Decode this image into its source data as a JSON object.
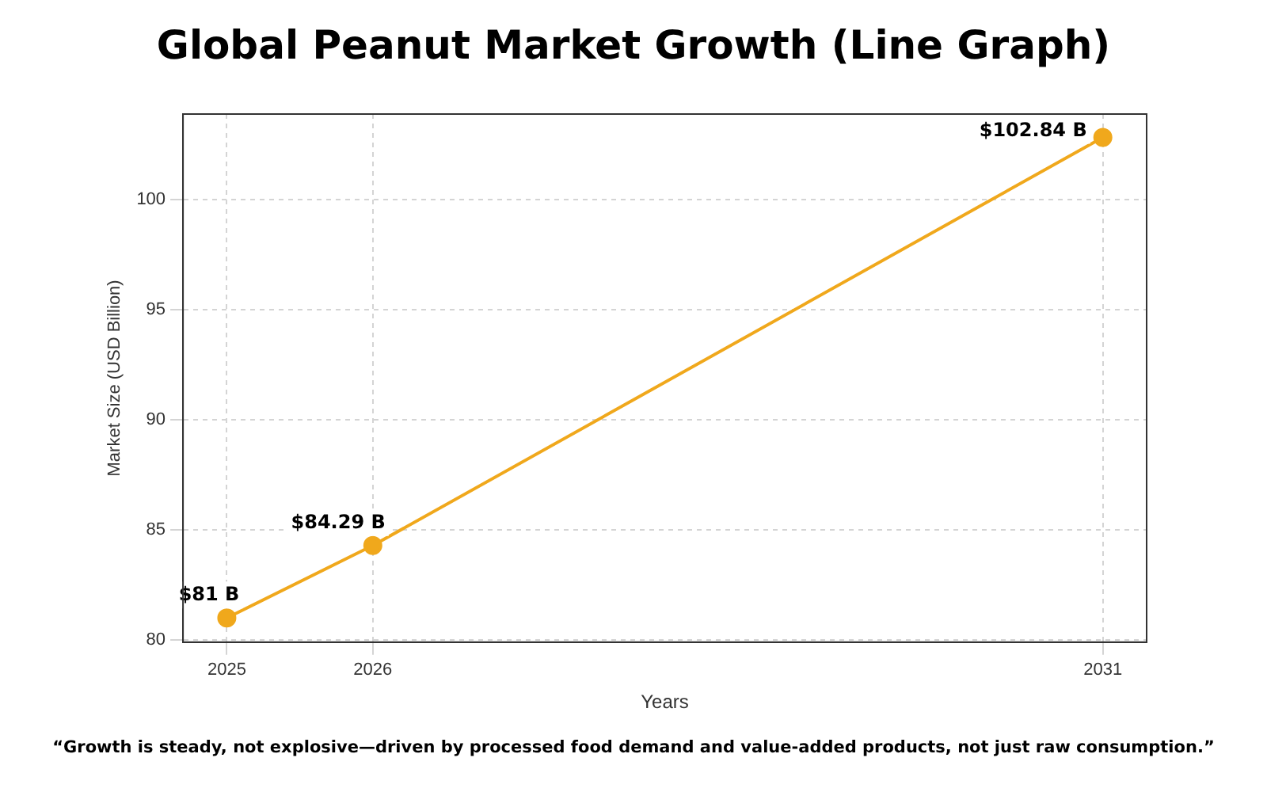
{
  "chart_data": {
    "type": "line",
    "title": "Global Peanut Market Growth (Line Graph)",
    "xlabel": "Years",
    "ylabel": "Market Size (USD Billion)",
    "x": [
      2025,
      2026,
      2031
    ],
    "series": [
      {
        "color": "#f0a81c",
        "values": [
          81,
          84.29,
          102.84
        ],
        "value_labels": [
          "$81 B",
          "$84.29 B",
          "$102.84 B"
        ]
      }
    ],
    "xlim": [
      2024.7,
      2031.3
    ],
    "xticks": [
      2025,
      2026,
      2031
    ],
    "ylim": [
      79.9,
      103.9
    ],
    "yticks": [
      80,
      85,
      90,
      95,
      100
    ],
    "grid": true,
    "marker": "circle",
    "line_style": "solid",
    "legend": false,
    "annotations": [
      "“Growth is steady, not explosive—driven by processed food demand and value-added products, not just raw consumption.”"
    ]
  }
}
